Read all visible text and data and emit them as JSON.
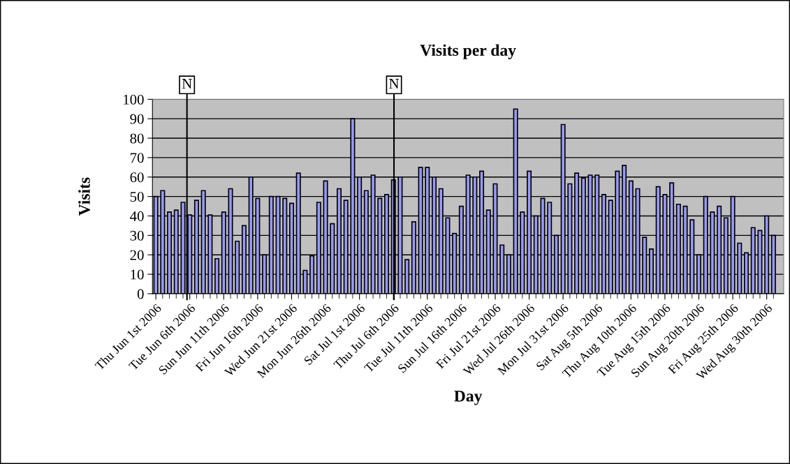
{
  "chart_data": {
    "type": "bar",
    "title": "Visits per day",
    "xlabel": "Day",
    "ylabel": "Visits",
    "x": [
      "2006-06-01",
      "2006-06-02",
      "2006-06-03",
      "2006-06-04",
      "2006-06-05",
      "2006-06-06",
      "2006-06-07",
      "2006-06-08",
      "2006-06-09",
      "2006-06-10",
      "2006-06-11",
      "2006-06-12",
      "2006-06-13",
      "2006-06-14",
      "2006-06-15",
      "2006-06-16",
      "2006-06-17",
      "2006-06-18",
      "2006-06-19",
      "2006-06-20",
      "2006-06-21",
      "2006-06-22",
      "2006-06-23",
      "2006-06-24",
      "2006-06-25",
      "2006-06-26",
      "2006-06-27",
      "2006-06-28",
      "2006-06-29",
      "2006-06-30",
      "2006-07-01",
      "2006-07-02",
      "2006-07-03",
      "2006-07-04",
      "2006-07-05",
      "2006-07-06",
      "2006-07-07",
      "2006-07-08",
      "2006-07-09",
      "2006-07-10",
      "2006-07-11",
      "2006-07-12",
      "2006-07-13",
      "2006-07-14",
      "2006-07-15",
      "2006-07-16",
      "2006-07-17",
      "2006-07-18",
      "2006-07-19",
      "2006-07-20",
      "2006-07-21",
      "2006-07-22",
      "2006-07-23",
      "2006-07-24",
      "2006-07-25",
      "2006-07-26",
      "2006-07-27",
      "2006-07-28",
      "2006-07-29",
      "2006-07-30",
      "2006-07-31",
      "2006-08-01",
      "2006-08-02",
      "2006-08-03",
      "2006-08-04",
      "2006-08-05",
      "2006-08-06",
      "2006-08-07",
      "2006-08-08",
      "2006-08-09",
      "2006-08-10",
      "2006-08-11",
      "2006-08-12",
      "2006-08-13",
      "2006-08-14",
      "2006-08-15",
      "2006-08-16",
      "2006-08-17",
      "2006-08-18",
      "2006-08-19",
      "2006-08-20",
      "2006-08-21",
      "2006-08-22",
      "2006-08-23",
      "2006-08-24",
      "2006-08-25",
      "2006-08-26",
      "2006-08-27",
      "2006-08-28",
      "2006-08-29",
      "2006-08-30",
      "2006-08-31"
    ],
    "series": [
      {
        "color": "#9999ff",
        "values": [
          50,
          53,
          42,
          43,
          47,
          40.5,
          48,
          53,
          40.5,
          18,
          42,
          54,
          27,
          35,
          60,
          49,
          20,
          50,
          50,
          49,
          46.5,
          62,
          12,
          19.5,
          47,
          58,
          36,
          54,
          48,
          90,
          60,
          53,
          61,
          49,
          51,
          58.5,
          60,
          17.5,
          37,
          65,
          65,
          60,
          54,
          39,
          31,
          45,
          61,
          60,
          63,
          43,
          56.5,
          25,
          20,
          95,
          42,
          63,
          40,
          49,
          47,
          30,
          87,
          56.5,
          62,
          59.5,
          61,
          61,
          51,
          48,
          63,
          66,
          58,
          54,
          29,
          23,
          55,
          51,
          57,
          46,
          45,
          38,
          20,
          50,
          42,
          45,
          39,
          50,
          26,
          21,
          34,
          32.5,
          40,
          30
        ]
      }
    ],
    "xlim": [
      "2006-05-31T12:00",
      "2006-09-01T12:00"
    ],
    "xticks": [
      {
        "value": "2006-06-01",
        "label": "Thu Jun 1st 2006"
      },
      {
        "value": "2006-06-06",
        "label": "Tue Jun 6th 2006"
      },
      {
        "value": "2006-06-11",
        "label": "Sun Jun 11th 2006"
      },
      {
        "value": "2006-06-16",
        "label": "Fri Jun 16th 2006"
      },
      {
        "value": "2006-06-21",
        "label": "Wed Jun 21st 2006"
      },
      {
        "value": "2006-06-26",
        "label": "Mon Jun 26th 2006"
      },
      {
        "value": "2006-07-01",
        "label": "Sat Jul 1st 2006"
      },
      {
        "value": "2006-07-06",
        "label": "Thu Jul 6th 2006"
      },
      {
        "value": "2006-07-11",
        "label": "Tue Jul 11th 2006"
      },
      {
        "value": "2006-07-16",
        "label": "Sun Jul 16th 2006"
      },
      {
        "value": "2006-07-21",
        "label": "Fri Jul 21st 2006"
      },
      {
        "value": "2006-07-26",
        "label": "Wed Jul 26th 2006"
      },
      {
        "value": "2006-07-31",
        "label": "Mon Jul 31st 2006"
      },
      {
        "value": "2006-08-05",
        "label": "Sat Aug 5th 2006"
      },
      {
        "value": "2006-08-10",
        "label": "Thu Aug 10th 2006"
      },
      {
        "value": "2006-08-15",
        "label": "Tue Aug 15th 2006"
      },
      {
        "value": "2006-08-20",
        "label": "Sun Aug 20th 2006"
      },
      {
        "value": "2006-08-25",
        "label": "Fri Aug 25th 2006"
      },
      {
        "value": "2006-08-30",
        "label": "Wed Aug 30th 2006"
      }
    ],
    "ylim": [
      0,
      100
    ],
    "yticks": [
      0,
      10,
      20,
      30,
      40,
      50,
      60,
      70,
      80,
      90,
      100
    ],
    "grid": "y",
    "ref_lines": [
      {
        "axis": "x",
        "value": "2006-06-05T14:00",
        "label": "N",
        "color": "#000000"
      },
      {
        "axis": "x",
        "value": "2006-07-06T02:00",
        "label": "N",
        "color": "#000000"
      }
    ]
  }
}
